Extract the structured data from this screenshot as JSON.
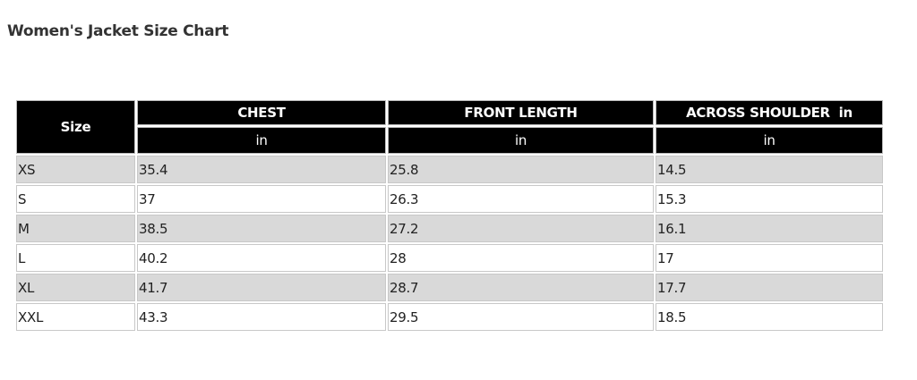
{
  "title": "Women's Jacket Size Chart",
  "table": {
    "size_header": "Size",
    "columns": [
      {
        "label": "CHEST",
        "unit": "in"
      },
      {
        "label": "FRONT LENGTH",
        "unit": "in"
      },
      {
        "label": "ACROSS SHOULDER  in",
        "unit": "in"
      }
    ],
    "rows": [
      [
        "XS",
        "35.4",
        "25.8",
        "14.5"
      ],
      [
        "S",
        "37",
        "26.3",
        "15.3"
      ],
      [
        "M",
        "38.5",
        "27.2",
        "16.1"
      ],
      [
        "L",
        "40.2",
        "28",
        "17"
      ],
      [
        "XL",
        "41.7",
        "28.7",
        "17.7"
      ],
      [
        "XXL",
        "43.3",
        "29.5",
        "18.5"
      ]
    ]
  },
  "colors": {
    "header_bg": "#000000",
    "stripe_bg": "#d9d9d9"
  }
}
